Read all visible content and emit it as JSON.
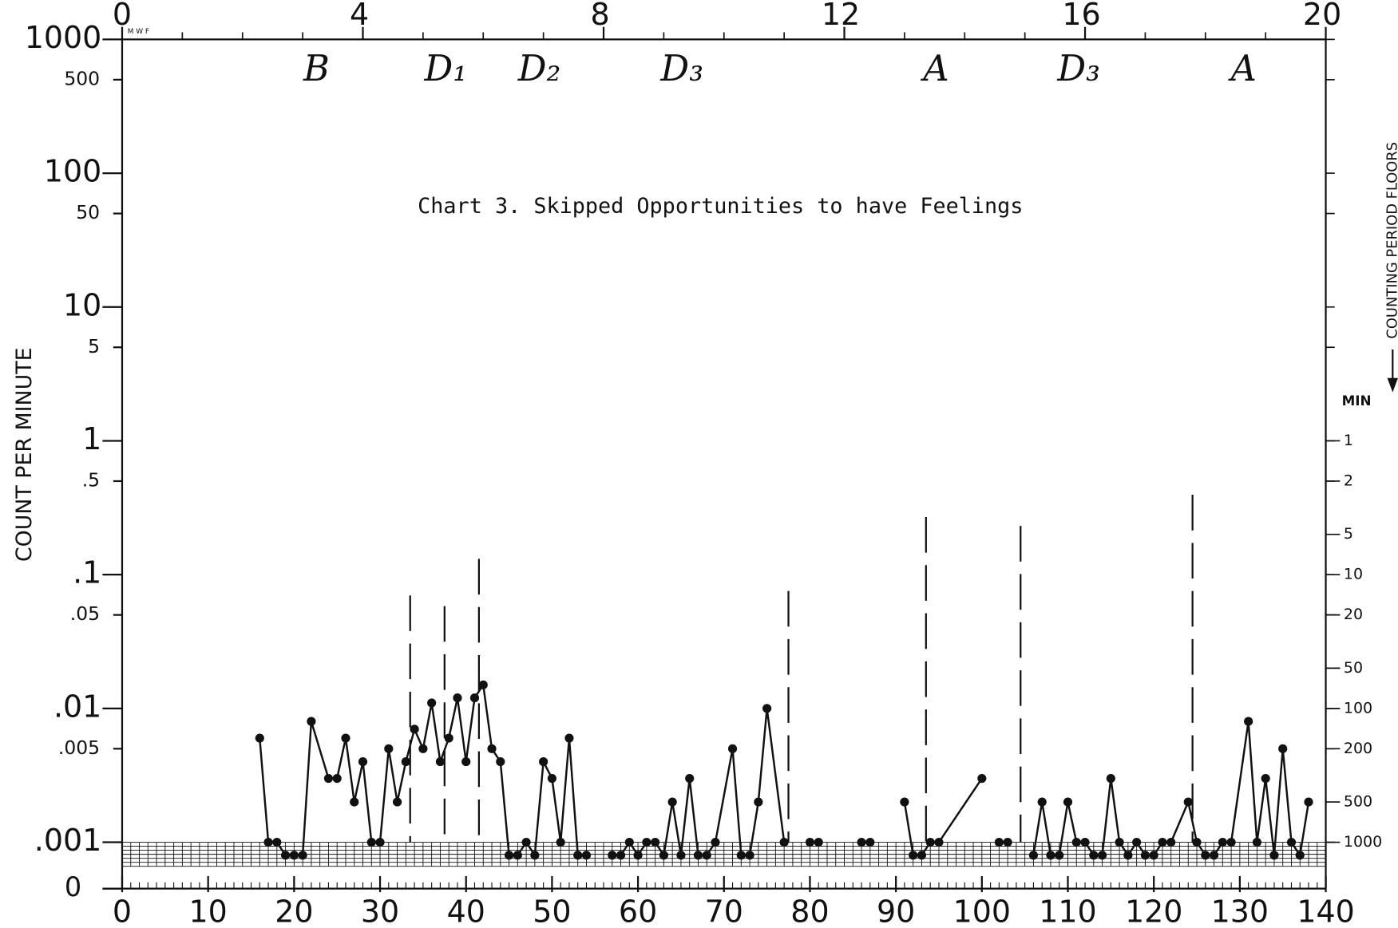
{
  "chart_data": {
    "type": "line",
    "title": "Chart 3.  Skipped Opportunities to have Feelings",
    "y_label": "COUNT PER MINUTE",
    "y2_label": "COUNTING PERIOD FLOORS",
    "y2_title": "MIN",
    "log_y": true,
    "xlim": [
      0,
      140
    ],
    "xticks": [
      0,
      10,
      20,
      30,
      40,
      50,
      60,
      70,
      80,
      90,
      100,
      110,
      120,
      130,
      140
    ],
    "ylim": [
      0.001,
      1000
    ],
    "yticks": [
      1000,
      500,
      100,
      50,
      10,
      5,
      1,
      {
        "value": 0.5,
        "label": ".5"
      },
      {
        "value": 0.1,
        "label": ".1"
      },
      {
        "value": 0.05,
        "label": ".05"
      },
      {
        "value": 0.01,
        "label": ".01"
      },
      {
        "value": 0.005,
        "label": ".005"
      },
      {
        "value": 0.001,
        "label": ".001"
      }
    ],
    "zero_label": "0",
    "x2lim": [
      0,
      20
    ],
    "x2ticks": [
      0,
      4,
      8,
      12,
      16,
      20
    ],
    "x2_label": "M W F",
    "y2ticks": [
      1,
      2,
      5,
      10,
      20,
      50,
      100,
      200,
      500,
      1000
    ],
    "phase_lines": [
      33.5,
      37.5,
      41.5,
      77.5,
      93.5,
      104.5,
      124.5
    ],
    "phase_labels": [
      "B",
      "D₁",
      "D₂",
      "D₃",
      "A",
      "D₃",
      "A"
    ],
    "x": [
      16,
      17,
      18,
      19,
      20,
      21,
      22,
      24,
      25,
      26,
      27,
      28,
      29,
      30,
      31,
      32,
      33,
      34,
      35,
      36,
      37,
      38,
      39,
      40,
      41,
      42,
      43,
      44,
      45,
      46,
      47,
      48,
      49,
      50,
      51,
      52,
      53,
      54,
      55,
      57,
      58,
      59,
      60,
      61,
      62,
      63,
      64,
      65,
      66,
      67,
      68,
      69,
      71,
      72,
      73,
      74,
      75,
      77,
      78,
      80,
      81,
      83,
      86,
      87,
      89,
      91,
      92,
      93,
      94,
      95,
      100,
      101,
      102,
      103,
      104,
      106,
      107,
      108,
      109,
      110,
      111,
      112,
      113,
      114,
      115,
      116,
      117,
      118,
      119,
      120,
      121,
      122,
      124,
      125,
      126,
      127,
      128,
      129,
      131,
      132,
      133,
      134,
      135,
      136,
      137,
      138
    ],
    "series": [
      {
        "color": "#111111",
        "values": [
          0.006,
          0.001,
          0.001,
          0.0008,
          0.0008,
          0.0008,
          0.008,
          0.003,
          0.003,
          0.006,
          0.002,
          0.004,
          0.001,
          0.001,
          0.005,
          0.002,
          0.004,
          0.007,
          0.005,
          0.011,
          0.004,
          0.006,
          0.012,
          0.004,
          0.012,
          0.015,
          0.005,
          0.004,
          0.0008,
          0.0008,
          0.001,
          0.0008,
          0.004,
          0.003,
          0.001,
          0.006,
          0.0008,
          0.0008,
          null,
          0.0008,
          0.0008,
          0.001,
          0.0008,
          0.001,
          0.001,
          0.0008,
          0.002,
          0.0008,
          0.003,
          0.0008,
          0.0008,
          0.001,
          0.005,
          0.0008,
          0.0008,
          0.002,
          0.01,
          0.001,
          null,
          0.001,
          0.001,
          null,
          0.001,
          0.001,
          null,
          0.002,
          0.0008,
          0.0008,
          0.001,
          0.001,
          0.003,
          null,
          0.001,
          0.001,
          null,
          0.0008,
          0.002,
          0.0008,
          0.0008,
          0.002,
          0.001,
          0.001,
          0.0008,
          0.0008,
          0.003,
          0.001,
          0.0008,
          0.001,
          0.0008,
          0.0008,
          0.001,
          0.001,
          0.002,
          0.001,
          0.0008,
          0.0008,
          0.001,
          0.001,
          0.008,
          0.001,
          0.003,
          0.0008,
          0.005,
          0.001,
          0.0008,
          0.002
        ]
      }
    ]
  }
}
